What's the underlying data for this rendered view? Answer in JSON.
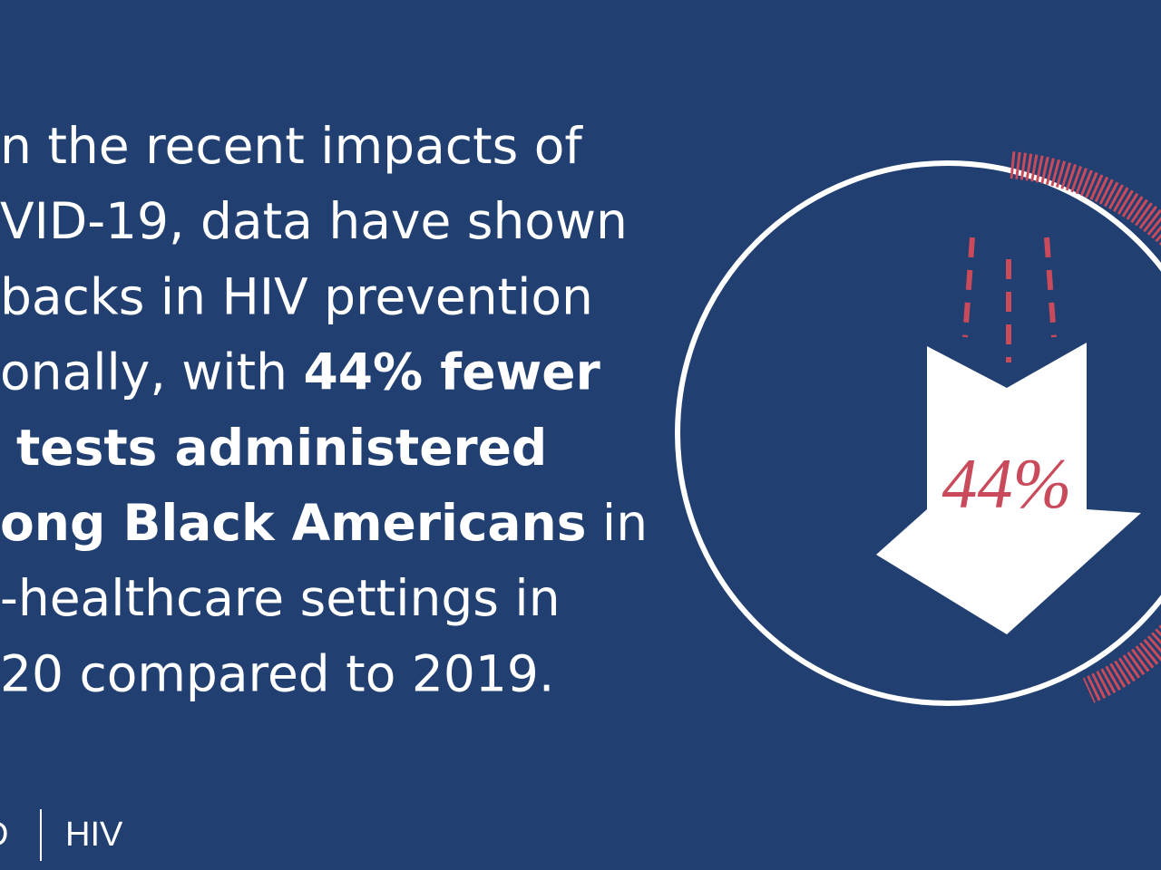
{
  "body_text": {
    "lines": [
      [
        {
          "text": "n the recent impacts of",
          "bold": false
        }
      ],
      [
        {
          "text": "VID-19, data have shown",
          "bold": false
        }
      ],
      [
        {
          "text": "backs in HIV prevention",
          "bold": false
        }
      ],
      [
        {
          "text": "onally, with ",
          "bold": false
        },
        {
          "text": "44% fewer",
          "bold": true
        }
      ],
      [
        {
          "text": "tests administered",
          "bold": true
        }
      ],
      [
        {
          "text": "ong Black Americans",
          "bold": true
        },
        {
          "text": " in",
          "bold": false
        }
      ],
      [
        {
          "text": "-healthcare settings in",
          "bold": false
        }
      ],
      [
        {
          "text": "20 compared to 2019.",
          "bold": false
        }
      ]
    ]
  },
  "graphic": {
    "label": "44%"
  },
  "footer": {
    "left": "D",
    "right": "HIV"
  }
}
